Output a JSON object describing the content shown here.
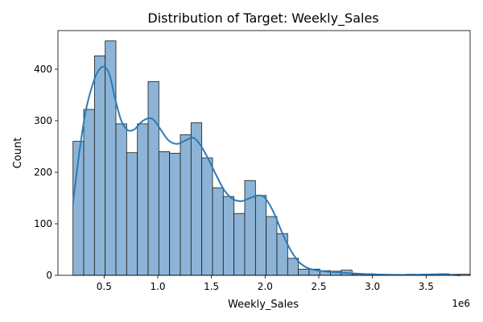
{
  "chart_data": {
    "type": "histogram",
    "title": "Distribution of Target: Weekly_Sales",
    "xlabel": "Weekly_Sales",
    "ylabel": "Count",
    "x_offset_label": "1e6",
    "xlim": [
      0.07,
      3.91
    ],
    "ylim": [
      0,
      475
    ],
    "xticks": [
      0.5,
      1.0,
      1.5,
      2.0,
      2.5,
      3.0,
      3.5
    ],
    "xtick_labels": [
      "0.5",
      "1.0",
      "1.5",
      "2.0",
      "2.5",
      "3.0",
      "3.5"
    ],
    "yticks": [
      0,
      100,
      200,
      300,
      400
    ],
    "ytick_labels": [
      "0",
      "100",
      "200",
      "300",
      "400"
    ],
    "grid": false,
    "legend": "none",
    "bar_color": "#8db4d6",
    "bar_edge_color": "#1a1a1a",
    "kde_color": "#2b7bba",
    "bins": {
      "start": 0.21,
      "width": 0.1,
      "counts": [
        260,
        322,
        426,
        455,
        294,
        238,
        294,
        376,
        240,
        237,
        273,
        296,
        228,
        170,
        153,
        120,
        184,
        155,
        114,
        81,
        33,
        12,
        12,
        9,
        8,
        10,
        2,
        3,
        1,
        1,
        1,
        2,
        1,
        1,
        3,
        2,
        2
      ]
    },
    "kde": {
      "x": [
        0.21,
        0.27,
        0.33,
        0.4,
        0.45,
        0.5,
        0.55,
        0.6,
        0.66,
        0.72,
        0.78,
        0.85,
        0.92,
        0.97,
        1.03,
        1.1,
        1.18,
        1.26,
        1.33,
        1.4,
        1.48,
        1.55,
        1.62,
        1.7,
        1.78,
        1.86,
        1.94,
        2.0,
        2.08,
        2.16,
        2.24,
        2.32,
        2.4,
        2.5,
        2.65,
        2.8,
        3.0,
        3.2,
        3.4,
        3.6,
        3.82
      ],
      "y": [
        140,
        240,
        320,
        375,
        398,
        405,
        390,
        345,
        300,
        282,
        283,
        298,
        305,
        300,
        282,
        262,
        255,
        262,
        267,
        252,
        222,
        192,
        165,
        148,
        144,
        150,
        155,
        150,
        122,
        82,
        48,
        25,
        14,
        9,
        6,
        4,
        2,
        1,
        1,
        2,
        0
      ]
    }
  }
}
